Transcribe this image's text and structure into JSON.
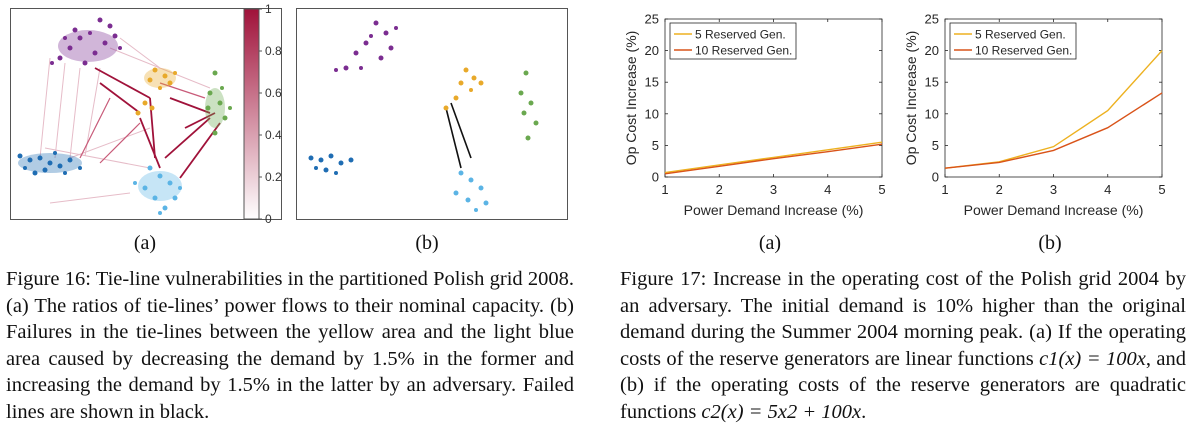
{
  "figure16": {
    "colorbar": {
      "ticks": [
        "1",
        "0.8",
        "0.6",
        "0.4",
        "0.2",
        "0"
      ],
      "colors": [
        "#ffffff",
        "#a0123a"
      ]
    },
    "region_colors": {
      "purple": "#7b2d91",
      "yellow": "#e8a92a",
      "green": "#6aa84f",
      "dark_blue": "#1f6db3",
      "light_blue": "#5bb4e5"
    },
    "label_a": "(a)",
    "label_b": "(b)",
    "caption": "Figure 16: Tie-line vulnerabilities in the partitioned Polish grid 2008. (a) The ratios of tie-lines’ power flows to their nominal capacity. (b) Failures in the tie-lines between the yellow area and the light blue area caused by decreasing the demand by 1.5% in the former and increasing the demand by 1.5% in the latter by an adversary. Failed lines are shown in black."
  },
  "figure17": {
    "label_a": "(a)",
    "label_b": "(b)",
    "caption_text": "Figure 17: Increase in the operating cost of the Polish grid 2004 by an adversary. The initial demand is 10% higher than the original demand during the Summer 2004 morning peak. (a) If the operating costs of the reserve generators are linear functions",
    "caption_mid": ", and (b) if the operating costs of the reserve generators are quadratic functions",
    "eq_linear": "c1(x) = 100x",
    "eq_quadratic": "c2(x) = 5x2 + 100x",
    "period": "."
  },
  "chart_data": [
    {
      "type": "line",
      "title": "",
      "xlabel": "Power Demand Increase (%)",
      "ylabel": "Op Cost Increase (%)",
      "x": [
        1,
        2,
        3,
        4,
        5
      ],
      "xlim": [
        1,
        5
      ],
      "ylim": [
        0,
        25
      ],
      "xticks": [
        "1",
        "2",
        "3",
        "4",
        "5"
      ],
      "yticks": [
        "0",
        "5",
        "10",
        "15",
        "20",
        "25"
      ],
      "legend_position": "top-left",
      "series": [
        {
          "name": "5 Reserved Gen.",
          "color": "#edb120",
          "values": [
            0.7,
            1.9,
            3.1,
            4.3,
            5.5
          ]
        },
        {
          "name": "10 Reserved Gen.",
          "color": "#d95319",
          "values": [
            0.5,
            1.7,
            2.9,
            4.0,
            5.2
          ]
        }
      ]
    },
    {
      "type": "line",
      "title": "",
      "xlabel": "Power Demand Increase (%)",
      "ylabel": "Op Cost Increase (%)",
      "x": [
        1,
        2,
        3,
        4,
        5
      ],
      "xlim": [
        1,
        5
      ],
      "ylim": [
        0,
        25
      ],
      "xticks": [
        "1",
        "2",
        "3",
        "4",
        "5"
      ],
      "yticks": [
        "0",
        "5",
        "10",
        "15",
        "20",
        "25"
      ],
      "legend_position": "top-left",
      "series": [
        {
          "name": "5 Reserved Gen.",
          "color": "#edb120",
          "values": [
            1.4,
            2.4,
            4.8,
            10.5,
            20.0
          ]
        },
        {
          "name": "10 Reserved Gen.",
          "color": "#d95319",
          "values": [
            1.4,
            2.3,
            4.2,
            7.8,
            13.3
          ]
        }
      ]
    }
  ]
}
